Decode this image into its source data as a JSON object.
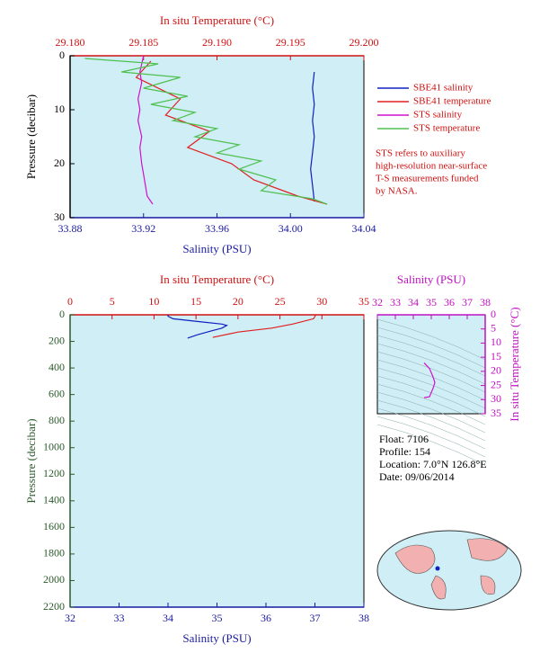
{
  "chart_data": [
    {
      "type": "line",
      "xlabel": "Salinity (PSU)",
      "x2label": "In situ Temperature (°C)",
      "ylabel": "Pressure (decibar)",
      "xlim": [
        33.88,
        34.04
      ],
      "xticks": [
        33.88,
        33.92,
        33.96,
        {
          "value": 34,
          "label": "34.00"
        },
        34.04
      ],
      "x2lim": [
        29.18,
        29.2
      ],
      "x2ticks": [
        {
          "value": 29.18,
          "label": "29.180"
        },
        29.185,
        {
          "value": 29.19,
          "label": "29.190"
        },
        29.195,
        {
          "value": 29.2,
          "label": "29.200"
        }
      ],
      "ylim": [
        0,
        30
      ],
      "yticks": [
        0,
        10,
        20,
        30
      ],
      "series": [
        {
          "name": "SBE41 salinity",
          "color": "#1020c0",
          "axis": "x",
          "values": [
            34.013,
            34.012,
            34.013,
            34.012,
            34.013,
            34.012,
            34.011,
            34.012,
            34.013
          ],
          "y": [
            3,
            6,
            9,
            12,
            15,
            18,
            21,
            24,
            27
          ]
        },
        {
          "name": "SBE41 temperature",
          "color": "#e02020",
          "axis": "x2",
          "values": [
            29.1855,
            29.1845,
            29.1875,
            29.1865,
            29.1895,
            29.188,
            29.191,
            29.1925,
            29.1955,
            29.1975
          ],
          "y": [
            1,
            4,
            8,
            11,
            14,
            17,
            20,
            23,
            26,
            27.5
          ]
        },
        {
          "name": "STS salinity",
          "color": "#d010d0",
          "axis": "x",
          "values": [
            33.92,
            33.918,
            33.919,
            33.917,
            33.918,
            33.917,
            33.919,
            33.918,
            33.919,
            33.92,
            33.921,
            33.922,
            33.925
          ],
          "y": [
            0,
            3,
            5,
            8,
            10,
            12,
            15,
            17,
            20,
            22,
            24,
            26,
            27.5
          ]
        },
        {
          "name": "STS temperature",
          "color": "#50c050",
          "axis": "x2",
          "values": [
            29.181,
            29.186,
            29.1835,
            29.1875,
            29.185,
            29.188,
            29.1855,
            29.1885,
            29.187,
            29.19,
            29.1885,
            29.1915,
            29.19,
            29.193,
            29.1915,
            29.194,
            29.193,
            29.1965,
            29.1975
          ],
          "y": [
            0.5,
            1.5,
            3,
            4,
            6,
            7.5,
            9,
            10.5,
            12,
            13.5,
            15,
            16.5,
            18,
            19.5,
            21,
            23,
            25,
            26.5,
            27.5
          ]
        }
      ]
    },
    {
      "type": "line",
      "xlabel": "Salinity (PSU)",
      "x2label": "In situ Temperature (°C)",
      "ylabel": "Pressure (decibar)",
      "xlim": [
        32,
        38
      ],
      "xticks": [
        32,
        33,
        34,
        35,
        36,
        37,
        38
      ],
      "x2lim": [
        0,
        35
      ],
      "x2ticks": [
        0,
        5,
        10,
        15,
        20,
        25,
        30,
        35
      ],
      "ylim": [
        0,
        2200
      ],
      "yticks": [
        0,
        200,
        400,
        600,
        800,
        1000,
        1200,
        1400,
        1600,
        1800,
        2000,
        2200
      ],
      "series": [
        {
          "name": "SBE41 salinity",
          "color": "#1020c0",
          "axis": "x",
          "values": [
            34.0,
            34.0,
            34.1,
            34.6,
            35.1,
            35.2,
            35.1,
            34.9,
            34.6,
            34.4
          ],
          "y": [
            0,
            10,
            30,
            50,
            70,
            80,
            100,
            120,
            150,
            175
          ]
        },
        {
          "name": "SBE41 temperature",
          "color": "#e02020",
          "axis": "x2",
          "values": [
            29.2,
            29.2,
            29.0,
            26.5,
            24.0,
            20.0,
            17.0
          ],
          "y": [
            0,
            10,
            30,
            70,
            100,
            130,
            170
          ]
        }
      ]
    },
    {
      "type": "line",
      "xlabel": "Salinity (PSU)",
      "ylabel": "In situ Temperature (°C)",
      "xlim": [
        32,
        38
      ],
      "xticks": [
        32,
        33,
        34,
        35,
        36,
        37,
        38
      ],
      "ylim": [
        0,
        35
      ],
      "yticks": [
        0,
        5,
        10,
        15,
        20,
        25,
        30,
        35
      ],
      "series": [
        {
          "name": "Salinity (PSU)",
          "color": "#d010d0",
          "axis": "x",
          "values": [
            34.6,
            34.9,
            35.1,
            35.2,
            35.1,
            34.9,
            34.6
          ],
          "y": [
            29.3,
            29.0,
            26.0,
            24.0,
            22.0,
            19.0,
            17.0
          ]
        }
      ]
    }
  ],
  "note": [
    "STS refers to auxiliary",
    "high-resolution near-surface",
    "T-S measurements funded",
    "by NASA."
  ],
  "info": [
    "Float:  7106",
    "Profile:  154",
    "Location:  7.0°N  126.8°E",
    "Date:  09/06/2014"
  ]
}
